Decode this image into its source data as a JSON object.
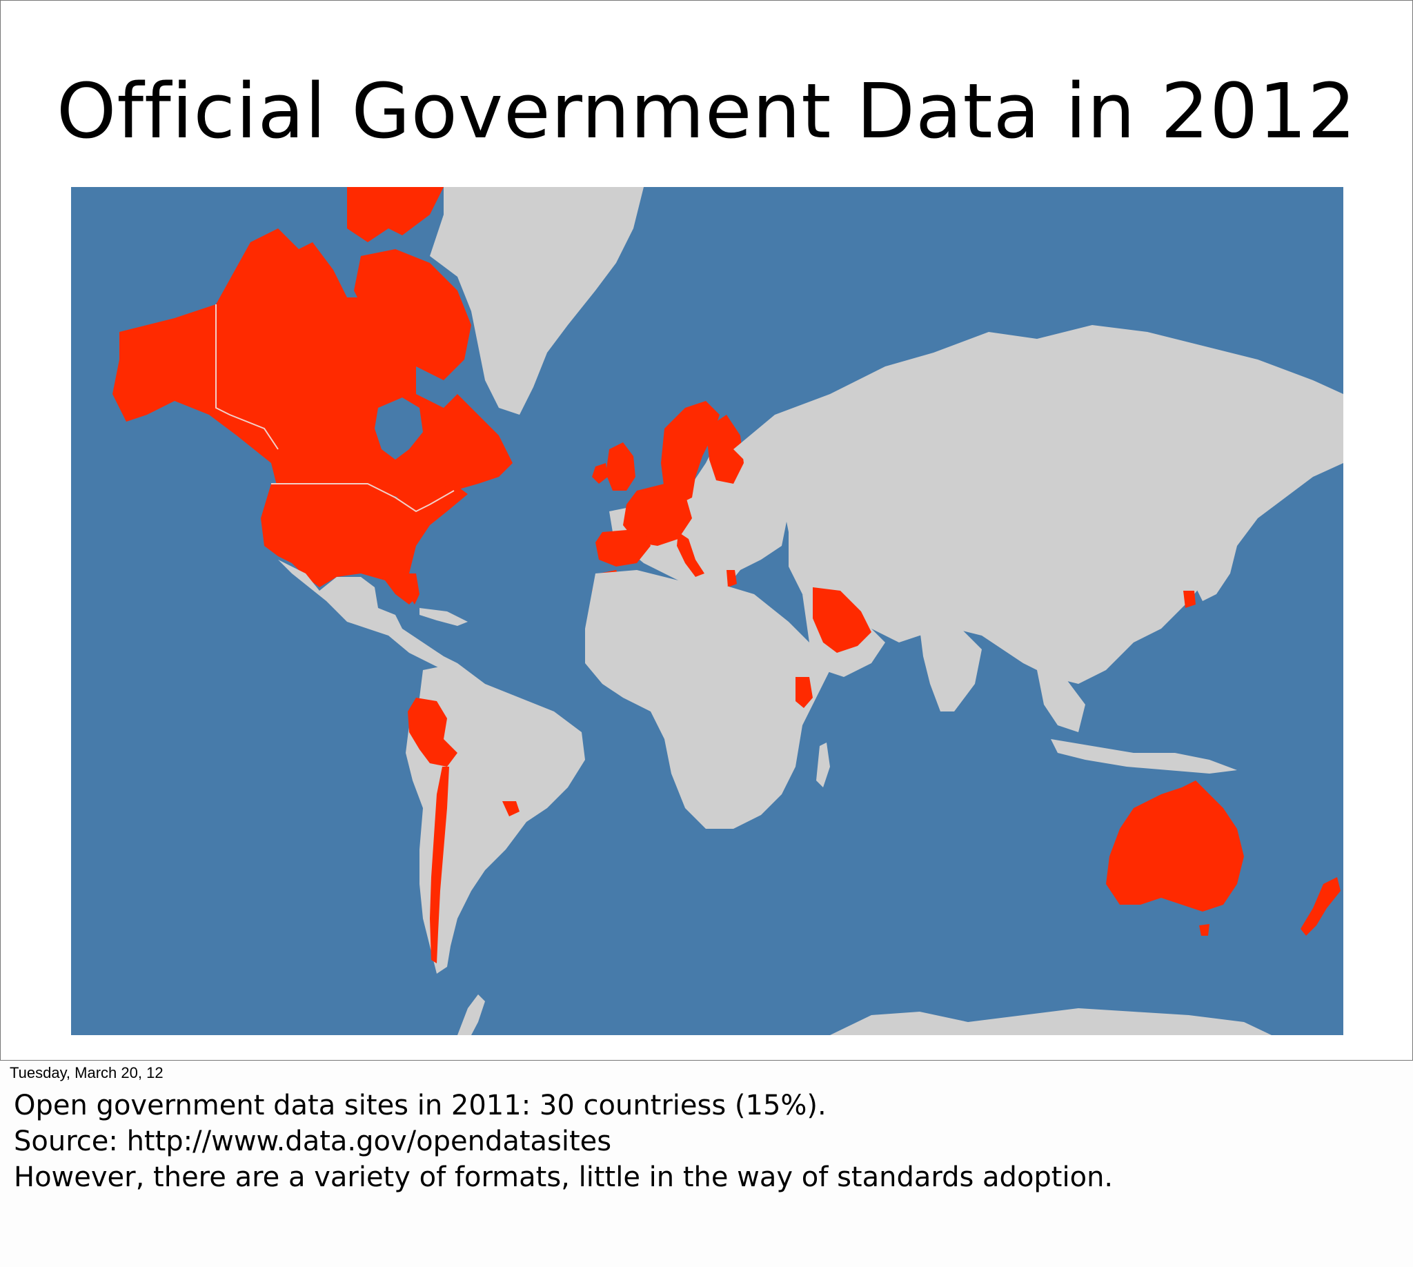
{
  "slide": {
    "title": "Official Government Data in 2012"
  },
  "map": {
    "colors": {
      "ocean": "#477baa",
      "land": "#cfcfcf",
      "highlight": "#ff2a00",
      "border": "#f2d0c8"
    },
    "highlighted_regions": [
      "Alaska",
      "Canada",
      "United States",
      "Greenland (partial)",
      "Norway",
      "Sweden",
      "Finland",
      "United Kingdom",
      "Ireland",
      "France",
      "Spain",
      "Portugal",
      "Belgium",
      "Netherlands",
      "Germany",
      "Denmark",
      "Italy",
      "Austria",
      "Greece",
      "Morocco",
      "Saudi Arabia",
      "Kenya",
      "South Korea",
      "Peru",
      "Chile",
      "Uruguay",
      "Australia",
      "New Zealand"
    ]
  },
  "footer": {
    "date": "Tuesday, March 20, 12"
  },
  "notes": {
    "line1": "Open government data sites in 2011:  30 countriess (15%).",
    "line2": "Source: http://www.data.gov/opendatasites",
    "line3": "However, there are a variety of formats, little in the way of standards adoption."
  }
}
